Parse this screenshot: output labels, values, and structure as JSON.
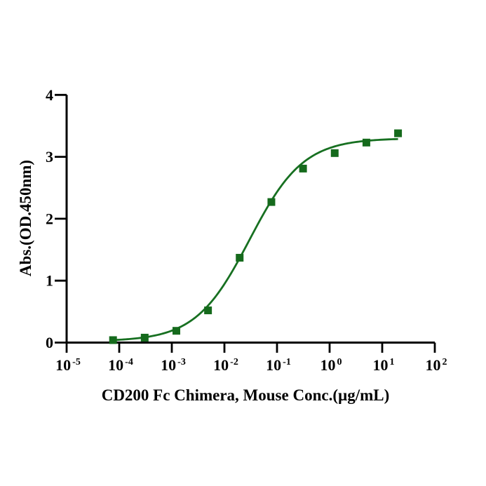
{
  "page": {
    "background": "#ffffff",
    "axis_color": "#000000"
  },
  "chart_data": {
    "type": "scatter",
    "subtype": "sigmoidal-dose-response",
    "title": "",
    "xlabel": "CD200 Fc Chimera, Mouse Conc.(µg/mL)",
    "ylabel": "Abs.(OD.450nm)",
    "x_scale": "log10",
    "xlim": [
      1e-05,
      100
    ],
    "x_tick_base": "10",
    "x_tick_exponents": [
      -5,
      -4,
      -3,
      -2,
      -1,
      0,
      1,
      2
    ],
    "ylim": [
      0,
      4
    ],
    "y_ticks": [
      "0",
      "1",
      "2",
      "3",
      "4"
    ],
    "grid": false,
    "legend": "none",
    "series": [
      {
        "name": "CD200 Fc Chimera, Mouse",
        "marker": "square",
        "line": "4PL-fit",
        "line_color": "#177021",
        "marker_color": "#156a1c",
        "points": [
          {
            "conc_ug_ml": 7.63e-05,
            "od450": 0.04
          },
          {
            "conc_ug_ml": 0.000305,
            "od450": 0.08
          },
          {
            "conc_ug_ml": 0.00122,
            "od450": 0.19
          },
          {
            "conc_ug_ml": 0.00488,
            "od450": 0.52
          },
          {
            "conc_ug_ml": 0.0195,
            "od450": 1.37
          },
          {
            "conc_ug_ml": 0.0781,
            "od450": 2.27
          },
          {
            "conc_ug_ml": 0.3125,
            "od450": 2.81
          },
          {
            "conc_ug_ml": 1.25,
            "od450": 3.06
          },
          {
            "conc_ug_ml": 5,
            "od450": 3.23
          },
          {
            "conc_ug_ml": 20,
            "od450": 3.38
          }
        ],
        "fit_4pl": {
          "bottom": 0.02,
          "top": 3.3,
          "ec50": 0.03,
          "hill": 0.85
        }
      }
    ]
  }
}
